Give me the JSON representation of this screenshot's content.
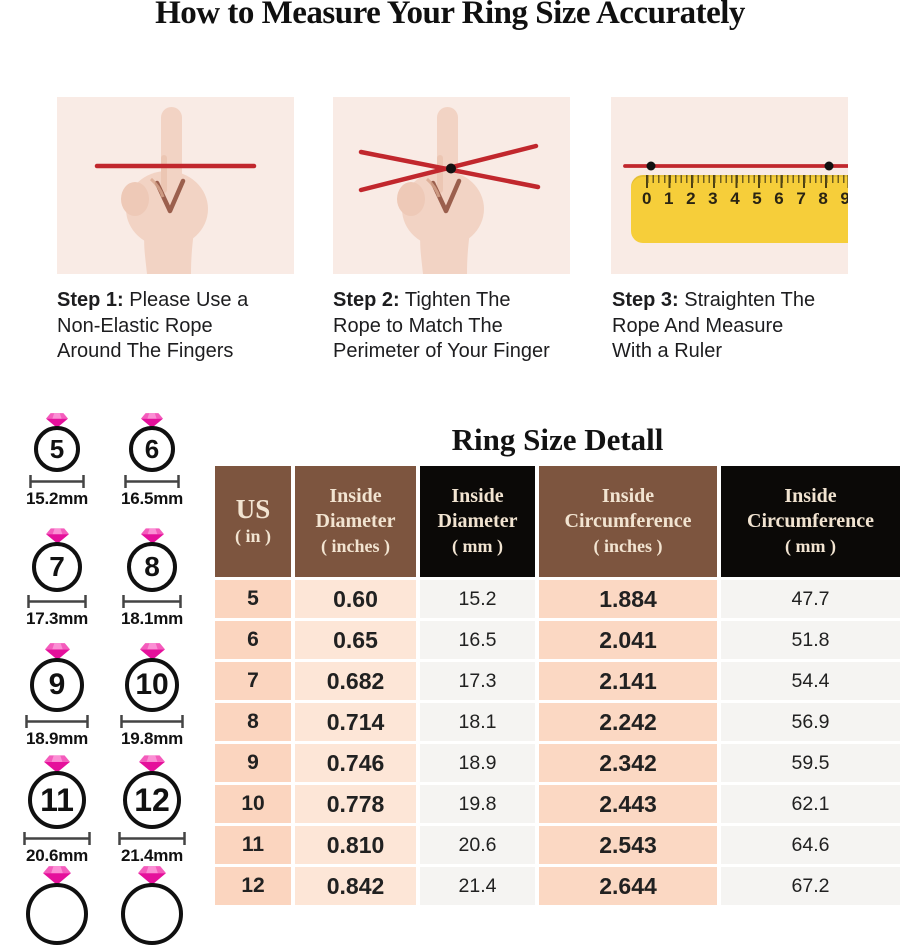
{
  "page_title": "How to Measure Your Ring Size Accurately",
  "steps": [
    {
      "prefix": "Step 1:",
      "line1": "Please Use a",
      "line2": "Non-Elastic Rope",
      "line3": "Around The Fingers"
    },
    {
      "prefix": "Step 2:",
      "line1": "Tighten The",
      "line2": "Rope to Match The",
      "line3": "Perimeter of Your Finger"
    },
    {
      "prefix": "Step 3:",
      "line1": "Straighten The",
      "line2": "Rope And Measure",
      "line3": "With a Ruler"
    }
  ],
  "step3_ruler": {
    "numbers": [
      "0",
      "1",
      "2",
      "3",
      "4",
      "5",
      "6",
      "7",
      "8",
      "9"
    ]
  },
  "ring_chart": {
    "items": [
      {
        "size": "5",
        "mm": "15.2mm"
      },
      {
        "size": "6",
        "mm": "16.5mm"
      },
      {
        "size": "7",
        "mm": "17.3mm"
      },
      {
        "size": "8",
        "mm": "18.1mm"
      },
      {
        "size": "9",
        "mm": "18.9mm"
      },
      {
        "size": "10",
        "mm": "19.8mm"
      },
      {
        "size": "11",
        "mm": "20.6mm"
      },
      {
        "size": "12",
        "mm": "21.4mm"
      }
    ],
    "partial_rings_visible": 2
  },
  "table": {
    "title": "Ring Size Detall",
    "headers": [
      {
        "line1": "US",
        "line2": "( in )"
      },
      {
        "line1": "Inside",
        "line2": "Diameter",
        "line3": "( inches )"
      },
      {
        "line1": "Inside",
        "line2": "Diameter",
        "line3": "( mm )"
      },
      {
        "line1": "Inside",
        "line2": "Circumference",
        "line3": "( inches )"
      },
      {
        "line1": "Inside",
        "line2": "Circumference",
        "line3": "( mm )"
      }
    ],
    "rows": [
      [
        "5",
        "0.60",
        "15.2",
        "1.884",
        "47.7"
      ],
      [
        "6",
        "0.65",
        "16.5",
        "2.041",
        "51.8"
      ],
      [
        "7",
        "0.682",
        "17.3",
        "2.141",
        "54.4"
      ],
      [
        "8",
        "0.714",
        "18.1",
        "2.242",
        "56.9"
      ],
      [
        "9",
        "0.746",
        "18.9",
        "2.342",
        "59.5"
      ],
      [
        "10",
        "0.778",
        "19.8",
        "2.443",
        "62.1"
      ],
      [
        "11",
        "0.810",
        "20.6",
        "2.543",
        "64.6"
      ],
      [
        "12",
        "0.842",
        "21.4",
        "2.644",
        "67.2"
      ]
    ]
  },
  "colors": {
    "card_bg": "#f9ebe5",
    "rope_red": "#c1272d",
    "ruler_yellow": "#f6ce3a",
    "header_brown": "#7d553f",
    "header_black": "#0b0907",
    "header_text": "#f2e4d1",
    "row_us_bg": "#fbd5bf",
    "row_diameter_in_bg": "#fde6d7",
    "row_circumference_in_bg": "#fbd8c3",
    "row_mm_bg": "#f5f4f2",
    "diamond_pink": "#e5109b"
  }
}
